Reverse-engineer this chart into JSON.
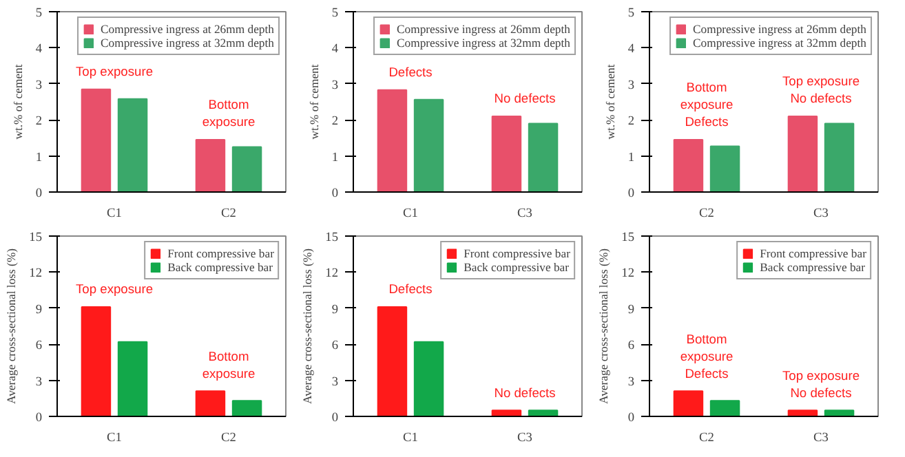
{
  "chart_data": [
    {
      "type": "bar",
      "ylabel": "wt.% of cement",
      "categories": [
        "C1",
        "C2"
      ],
      "ylim": [
        0,
        5
      ],
      "yticks": [
        0,
        1,
        2,
        3,
        4,
        5
      ],
      "legend": "top right",
      "grid": false,
      "series": [
        {
          "name": "Compressive ingress at 26mm depth",
          "color": "#e8506a",
          "values": [
            2.85,
            1.45
          ]
        },
        {
          "name": "Compressive ingress at 32mm depth",
          "color": "#3aa86a",
          "values": [
            2.58,
            1.25
          ]
        }
      ],
      "annotations": [
        "Top exposure",
        "Bottom\nexposure"
      ]
    },
    {
      "type": "bar",
      "ylabel": "wt.% of cement",
      "categories": [
        "C1",
        "C3"
      ],
      "ylim": [
        0,
        5
      ],
      "yticks": [
        0,
        1,
        2,
        3,
        4,
        5
      ],
      "legend": "top right",
      "grid": false,
      "series": [
        {
          "name": "Compressive ingress at 26mm depth",
          "color": "#e8506a",
          "values": [
            2.83,
            2.1
          ]
        },
        {
          "name": "Compressive ingress at 32mm depth",
          "color": "#3aa86a",
          "values": [
            2.56,
            1.9
          ]
        }
      ],
      "annotations": [
        "Defects",
        "No defects"
      ]
    },
    {
      "type": "bar",
      "ylabel": "wt.% of cement",
      "categories": [
        "C2",
        "C3"
      ],
      "ylim": [
        0,
        5
      ],
      "yticks": [
        0,
        1,
        2,
        3,
        4,
        5
      ],
      "legend": "top right",
      "grid": false,
      "series": [
        {
          "name": "Compressive ingress at 26mm depth",
          "color": "#e8506a",
          "values": [
            1.45,
            2.1
          ]
        },
        {
          "name": "Compressive ingress at 32mm depth",
          "color": "#3aa86a",
          "values": [
            1.27,
            1.9
          ]
        }
      ],
      "annotations": [
        "Bottom\nexposure\nDefects",
        "Top exposure\nNo defects"
      ]
    },
    {
      "type": "bar",
      "ylabel": "Average cross-sectional loss (%)",
      "categories": [
        "C1",
        "C2"
      ],
      "ylim": [
        0,
        15
      ],
      "yticks": [
        0,
        3,
        6,
        9,
        12,
        15
      ],
      "legend": "top right",
      "grid": false,
      "series": [
        {
          "name": "Front compressive bar",
          "color": "#ff1a1a",
          "values": [
            9.1,
            2.1
          ]
        },
        {
          "name": "Back compressive bar",
          "color": "#12a84a",
          "values": [
            6.2,
            1.3
          ]
        }
      ],
      "annotations": [
        "Top exposure",
        "Bottom\nexposure"
      ]
    },
    {
      "type": "bar",
      "ylabel": "Average cross-sectional loss (%)",
      "categories": [
        "C1",
        "C3"
      ],
      "ylim": [
        0,
        15
      ],
      "yticks": [
        0,
        3,
        6,
        9,
        12,
        15
      ],
      "legend": "top right",
      "grid": false,
      "series": [
        {
          "name": "Front compressive bar",
          "color": "#ff1a1a",
          "values": [
            9.1,
            0.5
          ]
        },
        {
          "name": "Back compressive bar",
          "color": "#12a84a",
          "values": [
            6.2,
            0.5
          ]
        }
      ],
      "annotations": [
        "Defects",
        "No defects"
      ]
    },
    {
      "type": "bar",
      "ylabel": "Average cross-sectional loss (%)",
      "categories": [
        "C2",
        "C3"
      ],
      "ylim": [
        0,
        15
      ],
      "yticks": [
        0,
        3,
        6,
        9,
        12,
        15
      ],
      "legend": "top right",
      "grid": false,
      "series": [
        {
          "name": "Front compressive bar",
          "color": "#ff1a1a",
          "values": [
            2.1,
            0.5
          ]
        },
        {
          "name": "Back compressive bar",
          "color": "#12a84a",
          "values": [
            1.3,
            0.5
          ]
        }
      ],
      "annotations": [
        "Bottom\nexposure\nDefects",
        "Top exposure\nNo defects"
      ]
    }
  ]
}
